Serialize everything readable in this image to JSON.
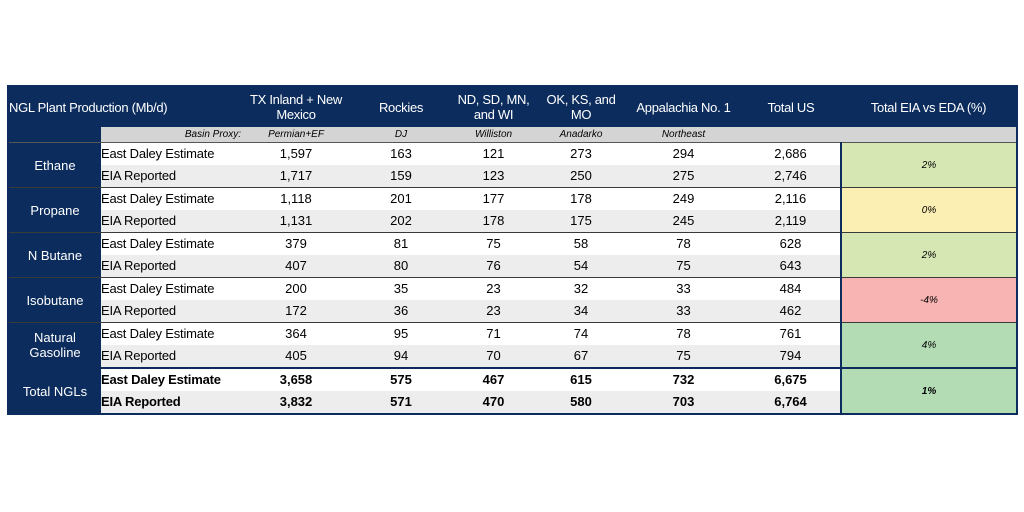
{
  "table": {
    "header_title": "NGL Plant Production (Mb/d)",
    "columns": [
      "TX Inland + New Mexico",
      "Rockies",
      "ND, SD, MN, and WI",
      "OK, KS, and MO",
      "Appalachia No. 1",
      "Total US"
    ],
    "diff_header": "Total EIA vs EDA (%)",
    "proxy_label": "Basin Proxy:",
    "proxies": [
      "Permian+EF",
      "DJ",
      "Williston",
      "Anadarko",
      "Northeast",
      ""
    ],
    "source_labels": {
      "estimate": "East Daley Estimate",
      "reported": "EIA Reported"
    },
    "rows": [
      {
        "product": "Ethane",
        "estimate": [
          "1,597",
          "163",
          "121",
          "273",
          "294",
          "2,686"
        ],
        "reported": [
          "1,717",
          "159",
          "123",
          "250",
          "275",
          "2,746"
        ],
        "diff": "2%",
        "diff_color": "#d7e7b4"
      },
      {
        "product": "Propane",
        "estimate": [
          "1,118",
          "201",
          "177",
          "178",
          "249",
          "2,116"
        ],
        "reported": [
          "1,131",
          "202",
          "178",
          "175",
          "245",
          "2,119"
        ],
        "diff": "0%",
        "diff_color": "#fcefb4"
      },
      {
        "product": "N Butane",
        "estimate": [
          "379",
          "81",
          "75",
          "58",
          "78",
          "628"
        ],
        "reported": [
          "407",
          "80",
          "76",
          "54",
          "75",
          "643"
        ],
        "diff": "2%",
        "diff_color": "#d7e7b4"
      },
      {
        "product": "Isobutane",
        "estimate": [
          "200",
          "35",
          "23",
          "32",
          "33",
          "484"
        ],
        "reported": [
          "172",
          "36",
          "23",
          "34",
          "33",
          "462"
        ],
        "diff": "-4%",
        "diff_color": "#f7b4b2"
      },
      {
        "product": "Natural Gasoline",
        "estimate": [
          "364",
          "95",
          "71",
          "74",
          "78",
          "761"
        ],
        "reported": [
          "405",
          "94",
          "70",
          "67",
          "75",
          "794"
        ],
        "diff": "4%",
        "diff_color": "#b3dcb4"
      }
    ],
    "total": {
      "product": "Total NGLs",
      "estimate": [
        "3,658",
        "575",
        "467",
        "615",
        "732",
        "6,675"
      ],
      "reported": [
        "3,832",
        "571",
        "470",
        "580",
        "703",
        "6,764"
      ],
      "diff": "1%",
      "diff_color": "#b3dcb4"
    },
    "colors": {
      "navy": "#0b2c5c",
      "proxy_bg": "#d4d4d4",
      "alt_row": "#ededed"
    }
  }
}
